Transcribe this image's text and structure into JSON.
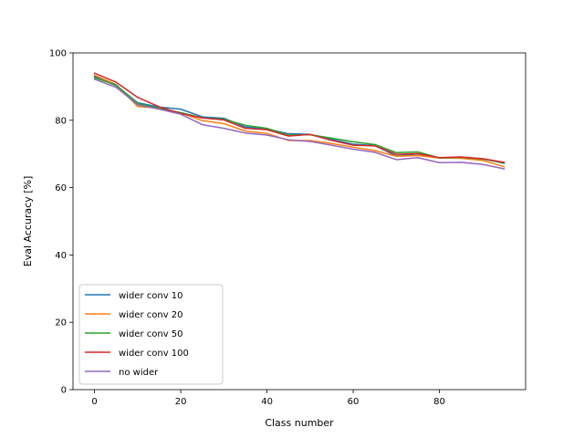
{
  "chart_data": {
    "type": "line",
    "title": "",
    "xlabel": "Class number",
    "ylabel": "Eval Accuracy [%]",
    "xlim": [
      -5,
      100
    ],
    "ylim": [
      0,
      100
    ],
    "xticks": [
      0,
      20,
      40,
      60,
      80
    ],
    "yticks": [
      0,
      20,
      40,
      60,
      80,
      100
    ],
    "grid": false,
    "legend_position": "lower-left",
    "x": [
      0,
      5,
      10,
      15,
      20,
      25,
      30,
      35,
      40,
      45,
      50,
      55,
      60,
      65,
      70,
      75,
      80,
      85,
      90,
      95
    ],
    "series": [
      {
        "name": "wider conv 10",
        "color": "#1f77b4",
        "values": [
          93.0,
          90.3,
          85.2,
          83.9,
          83.3,
          81.0,
          80.6,
          78.0,
          77.4,
          76.0,
          75.8,
          74.3,
          72.9,
          72.5,
          69.4,
          70.0,
          68.9,
          68.9,
          68.6,
          67.2
        ]
      },
      {
        "name": "wider conv 20",
        "color": "#ff7f0e",
        "values": [
          93.4,
          90.6,
          84.1,
          83.6,
          82.2,
          79.9,
          79.0,
          76.8,
          76.1,
          74.0,
          74.0,
          73.1,
          72.0,
          71.0,
          69.3,
          69.5,
          68.8,
          68.7,
          68.1,
          66.2
        ]
      },
      {
        "name": "wider conv 50",
        "color": "#2ca02c",
        "values": [
          92.6,
          90.5,
          85.0,
          83.5,
          82.3,
          80.7,
          80.3,
          78.5,
          77.6,
          75.6,
          75.7,
          74.7,
          73.6,
          72.8,
          70.4,
          70.6,
          68.8,
          69.0,
          68.5,
          67.4
        ]
      },
      {
        "name": "wider conv 100",
        "color": "#d62728",
        "values": [
          94.0,
          91.3,
          86.8,
          84.0,
          82.0,
          80.7,
          80.1,
          77.6,
          77.2,
          75.3,
          75.8,
          74.0,
          72.6,
          72.4,
          69.9,
          70.1,
          68.9,
          69.1,
          68.6,
          67.5
        ]
      },
      {
        "name": "no wider",
        "color": "#9467bd",
        "values": [
          92.2,
          89.8,
          84.6,
          83.3,
          81.8,
          78.7,
          77.6,
          76.2,
          75.6,
          74.2,
          73.7,
          72.6,
          71.4,
          70.5,
          68.3,
          68.9,
          67.4,
          67.5,
          66.9,
          65.6
        ]
      }
    ]
  }
}
